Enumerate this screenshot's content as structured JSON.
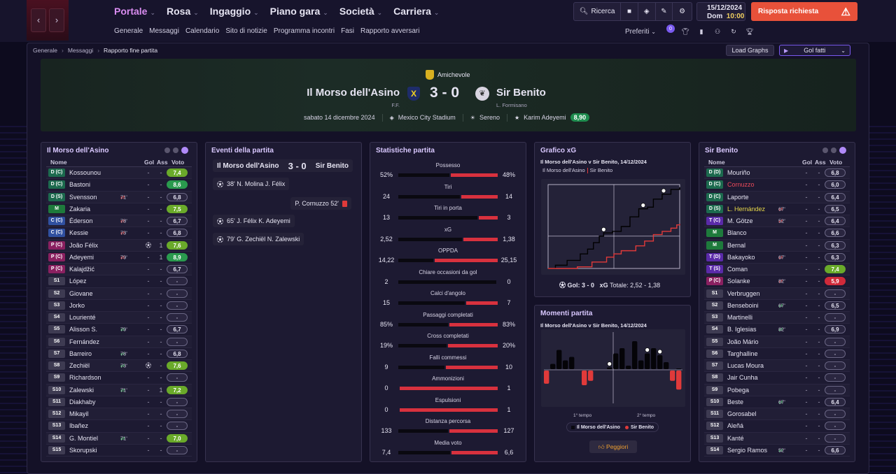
{
  "nav": {
    "back": "‹",
    "forward": "›",
    "menu": [
      "Portale",
      "Rosa",
      "Ingaggio",
      "Piano gara",
      "Società",
      "Carriera"
    ],
    "submenu": [
      "Generale",
      "Messaggi",
      "Calendario",
      "Sito di notizie",
      "Programma incontri",
      "Fasi",
      "Rapporto avversari"
    ],
    "search": "Ricerca",
    "date": "15/12/2024",
    "day": "Dom",
    "time": "10:00",
    "alert": "Risposta richiesta",
    "alert_icon": "⚠",
    "preferiti": "Preferiti",
    "notif": "0"
  },
  "breadcrumb": [
    "Generale",
    "Messaggi",
    "Rapporto fine partita"
  ],
  "buttons": {
    "load_graphs": "Load Graphs",
    "gol_fatti": "Gol fatti"
  },
  "match": {
    "competition": "Amichevole",
    "home": "Il Morso dell'Asino",
    "home_sub": "F.F.",
    "home_crest": "X",
    "score": "3 - 0",
    "away": "Sir Benito",
    "away_sub": "L. Formisano",
    "date": "sabato 14 dicembre 2024",
    "stadium": "Mexico City Stadium",
    "weather": "Sereno",
    "motm": "Karim Adeyemi",
    "motm_rating": "8,90"
  },
  "home_panel": {
    "title": "Il Morso dell'Asino",
    "headers": {
      "name": "Nome",
      "gol": "Gol",
      "ass": "Ass",
      "voto": "Voto"
    },
    "players": [
      {
        "pos": "D (C)",
        "t": "D",
        "name": "Kossounou",
        "gol": "-",
        "ass": "-",
        "voto": "7,4",
        "v": "g2"
      },
      {
        "pos": "D (C)",
        "t": "D",
        "name": "Bastoni",
        "gol": "-",
        "ass": "-",
        "voto": "8,6",
        "v": "g1"
      },
      {
        "pos": "D (S)",
        "t": "D",
        "name": "Svensson",
        "sub": "71'",
        "sg": "r",
        "gol": "-",
        "ass": "-",
        "voto": "6,8"
      },
      {
        "pos": "M",
        "t": "M",
        "name": "Zakaria",
        "gol": "-",
        "ass": "-",
        "voto": "7,5",
        "v": "g2"
      },
      {
        "pos": "C (C)",
        "t": "C",
        "name": "Éderson",
        "sub": "78'",
        "sg": "r",
        "gol": "-",
        "ass": "-",
        "voto": "6,7"
      },
      {
        "pos": "C (C)",
        "t": "C",
        "name": "Kessie",
        "sub": "73'",
        "sg": "r",
        "gol": "-",
        "ass": "-",
        "voto": "6,8"
      },
      {
        "pos": "P (C)",
        "t": "P",
        "name": "João Félix",
        "ev": "⚽",
        "gol": "-",
        "ass": "1",
        "voto": "7,6",
        "v": "g2"
      },
      {
        "pos": "P (C)",
        "t": "P",
        "name": "Adeyemi",
        "sub": "79'",
        "sg": "r",
        "gol": "-",
        "ass": "1",
        "voto": "8,9",
        "v": "g1"
      },
      {
        "pos": "P (C)",
        "t": "P",
        "name": "Kalajdžić",
        "gol": "-",
        "ass": "-",
        "voto": "6,7"
      },
      {
        "pos": "S1",
        "t": "S",
        "name": "López",
        "gol": "-",
        "ass": "-",
        "voto": "-",
        "v": "e"
      },
      {
        "pos": "S2",
        "t": "S",
        "name": "Giovane",
        "gol": "-",
        "ass": "-",
        "voto": "-",
        "v": "e"
      },
      {
        "pos": "S3",
        "t": "S",
        "name": "Jorko",
        "gol": "-",
        "ass": "-",
        "voto": "-",
        "v": "e"
      },
      {
        "pos": "S4",
        "t": "S",
        "name": "Lourienté",
        "gol": "-",
        "ass": "-",
        "voto": "-",
        "v": "e"
      },
      {
        "pos": "S5",
        "t": "S",
        "name": "Alisson S.",
        "sub": "79'",
        "sg": "g",
        "gol": "-",
        "ass": "-",
        "voto": "6,7"
      },
      {
        "pos": "S6",
        "t": "S",
        "name": "Fernández",
        "gol": "-",
        "ass": "-",
        "voto": "-",
        "v": "e"
      },
      {
        "pos": "S7",
        "t": "S",
        "name": "Barreiro",
        "sub": "78'",
        "sg": "g",
        "gol": "-",
        "ass": "-",
        "voto": "6,8"
      },
      {
        "pos": "S8",
        "t": "S",
        "name": "Zechiël",
        "sub": "73'",
        "sg": "g",
        "ev": "⚽",
        "gol": "-",
        "ass": "-",
        "voto": "7,6",
        "v": "g2"
      },
      {
        "pos": "S9",
        "t": "S",
        "name": "Richardson",
        "gol": "-",
        "ass": "-",
        "voto": "-",
        "v": "e"
      },
      {
        "pos": "S10",
        "t": "S",
        "name": "Zalewski",
        "sub": "71'",
        "sg": "g",
        "gol": "-",
        "ass": "1",
        "voto": "7,2",
        "v": "g2"
      },
      {
        "pos": "S11",
        "t": "S",
        "name": "Diakhaby",
        "gol": "-",
        "ass": "-",
        "voto": "-",
        "v": "e"
      },
      {
        "pos": "S12",
        "t": "S",
        "name": "Mikayil",
        "gol": "-",
        "ass": "-",
        "voto": "-",
        "v": "e"
      },
      {
        "pos": "S13",
        "t": "S",
        "name": "Ibañez",
        "gol": "-",
        "ass": "-",
        "voto": "-",
        "v": "e"
      },
      {
        "pos": "S14",
        "t": "S",
        "name": "G. Montiel",
        "sub": "71'",
        "sg": "g",
        "gol": "-",
        "ass": "-",
        "voto": "7,0",
        "v": "g2"
      },
      {
        "pos": "S15",
        "t": "S",
        "name": "Skorupski",
        "gol": "-",
        "ass": "-",
        "voto": "-",
        "v": "e"
      }
    ]
  },
  "events": {
    "title": "Eventi della partita",
    "home": "Il Morso dell'Asino",
    "score": "3 - 0",
    "away": "Sir Benito",
    "items": [
      {
        "text": "38'  N. Molina J. Félix",
        "side": "home",
        "type": "goal"
      },
      {
        "text": "P. Cornuzzo 52'",
        "side": "away",
        "type": "red"
      },
      {
        "text": "65'  J. Félix K. Adeyemi",
        "side": "home",
        "type": "goal"
      },
      {
        "text": "79'  G. Zechiël N. Zalewski",
        "side": "home",
        "type": "goal"
      }
    ]
  },
  "stats": {
    "title": "Statistiche partita",
    "items": [
      {
        "label": "Possesso",
        "l": "52%",
        "r": "48%",
        "lp": 52,
        "rp": 48
      },
      {
        "label": "Tiri",
        "l": "24",
        "r": "14",
        "lp": 63,
        "rp": 37
      },
      {
        "label": "Tiri in porta",
        "l": "13",
        "r": "3",
        "lp": 81,
        "rp": 19
      },
      {
        "label": "xG",
        "l": "2,52",
        "r": "1,38",
        "lp": 65,
        "rp": 35
      },
      {
        "label": "OPPDA",
        "l": "14,22",
        "r": "25,15",
        "lp": 36,
        "rp": 64
      },
      {
        "label": "Chiare occasioni da gol",
        "l": "2",
        "r": "0",
        "lp": 100,
        "rp": 0
      },
      {
        "label": "Calci d'angolo",
        "l": "15",
        "r": "7",
        "lp": 68,
        "rp": 32
      },
      {
        "label": "Passaggi completati",
        "l": "85%",
        "r": "83%",
        "lp": 51,
        "rp": 49
      },
      {
        "label": "Cross completati",
        "l": "19%",
        "r": "20%",
        "lp": 49,
        "rp": 51
      },
      {
        "label": "Falli commessi",
        "l": "9",
        "r": "10",
        "lp": 47,
        "rp": 53
      },
      {
        "label": "Ammonizioni",
        "l": "0",
        "r": "1",
        "lp": 0,
        "rp": 100
      },
      {
        "label": "Espulsioni",
        "l": "0",
        "r": "1",
        "lp": 0,
        "rp": 100
      },
      {
        "label": "Distanza percorsa",
        "l": "133",
        "r": "127",
        "lp": 51,
        "rp": 49
      },
      {
        "label": "Media voto",
        "l": "7,4",
        "r": "6,6",
        "lp": 53,
        "rp": 47
      }
    ]
  },
  "xg": {
    "title": "Grafico xG",
    "subtitle": "Il Morso dell'Asino v Sir Benito, 14/12/2024",
    "legend_home": "Il Morso dell'Asino",
    "legend_away": "Sir Benito",
    "footer_goals": "Gol: 3 - 0",
    "footer_xg_label": "xG",
    "footer_xg": "Totale: 2,52 - 1,38"
  },
  "momenti": {
    "title": "Momenti partita",
    "subtitle": "Il Morso dell'Asino v Sir Benito, 14/12/2024",
    "half1": "1° tempo",
    "half2": "2° tempo",
    "legend_home": "Il Morso dell'Asino",
    "legend_away": "Sir Benito",
    "peggiori": "Peggiori"
  },
  "away_panel": {
    "title": "Sir Benito",
    "headers": {
      "name": "Nome",
      "gol": "Gol",
      "ass": "Ass",
      "voto": "Voto"
    },
    "players": [
      {
        "pos": "D (D)",
        "t": "D",
        "name": "Mouriño",
        "gol": "-",
        "ass": "-",
        "voto": "6,8"
      },
      {
        "pos": "D (C)",
        "t": "D",
        "name": "Cornuzzo",
        "nc": "red",
        "gol": "-",
        "ass": "-",
        "voto": "6,0"
      },
      {
        "pos": "D (C)",
        "t": "D",
        "name": "Laporte",
        "gol": "-",
        "ass": "-",
        "voto": "6,4"
      },
      {
        "pos": "D (S)",
        "t": "D",
        "name": "L. Hernández",
        "nc": "yel",
        "sub": "67'",
        "sg": "r",
        "gol": "-",
        "ass": "-",
        "voto": "6,5"
      },
      {
        "pos": "T (C)",
        "t": "T",
        "name": "M. Götze",
        "sub": "52'",
        "sg": "r",
        "gol": "-",
        "ass": "-",
        "voto": "6,4"
      },
      {
        "pos": "M",
        "t": "M",
        "name": "Blanco",
        "gol": "-",
        "ass": "-",
        "voto": "6,6"
      },
      {
        "pos": "M",
        "t": "M",
        "name": "Bernal",
        "gol": "-",
        "ass": "-",
        "voto": "6,3"
      },
      {
        "pos": "T (D)",
        "t": "T",
        "name": "Bakayoko",
        "sub": "67'",
        "sg": "r",
        "gol": "-",
        "ass": "-",
        "voto": "6,3"
      },
      {
        "pos": "T (S)",
        "t": "T",
        "name": "Coman",
        "gol": "-",
        "ass": "-",
        "voto": "7,4",
        "v": "g2"
      },
      {
        "pos": "P (C)",
        "t": "P",
        "name": "Solanke",
        "sub": "82'",
        "sg": "r",
        "gol": "-",
        "ass": "-",
        "voto": "5,9",
        "v": "r"
      },
      {
        "pos": "S1",
        "t": "S",
        "name": "Verbruggen",
        "gol": "-",
        "ass": "-",
        "voto": "-",
        "v": "e"
      },
      {
        "pos": "S2",
        "t": "S",
        "name": "Benseboini",
        "sub": "67'",
        "sg": "g",
        "gol": "-",
        "ass": "-",
        "voto": "6,5"
      },
      {
        "pos": "S3",
        "t": "S",
        "name": "Martinelli",
        "gol": "-",
        "ass": "-",
        "voto": "-",
        "v": "e"
      },
      {
        "pos": "S4",
        "t": "S",
        "name": "B. Iglesias",
        "sub": "82'",
        "sg": "g",
        "gol": "-",
        "ass": "-",
        "voto": "6,9"
      },
      {
        "pos": "S5",
        "t": "S",
        "name": "João Mário",
        "gol": "-",
        "ass": "-",
        "voto": "-",
        "v": "e"
      },
      {
        "pos": "S6",
        "t": "S",
        "name": "Targhalline",
        "gol": "-",
        "ass": "-",
        "voto": "-",
        "v": "e"
      },
      {
        "pos": "S7",
        "t": "S",
        "name": "Lucas Moura",
        "gol": "-",
        "ass": "-",
        "voto": "-",
        "v": "e"
      },
      {
        "pos": "S8",
        "t": "S",
        "name": "Jair Cunha",
        "gol": "-",
        "ass": "-",
        "voto": "-",
        "v": "e"
      },
      {
        "pos": "S9",
        "t": "S",
        "name": "Pobega",
        "gol": "-",
        "ass": "-",
        "voto": "-",
        "v": "e"
      },
      {
        "pos": "S10",
        "t": "S",
        "name": "Beste",
        "sub": "67'",
        "sg": "g",
        "gol": "-",
        "ass": "-",
        "voto": "6,4"
      },
      {
        "pos": "S11",
        "t": "S",
        "name": "Gorosabel",
        "gol": "-",
        "ass": "-",
        "voto": "-",
        "v": "e"
      },
      {
        "pos": "S12",
        "t": "S",
        "name": "Aleñá",
        "gol": "-",
        "ass": "-",
        "voto": "-",
        "v": "e"
      },
      {
        "pos": "S13",
        "t": "S",
        "name": "Kanté",
        "gol": "-",
        "ass": "-",
        "voto": "-",
        "v": "e"
      },
      {
        "pos": "S14",
        "t": "S",
        "name": "Sergio Ramos",
        "sub": "52'",
        "sg": "g",
        "gol": "-",
        "ass": "-",
        "voto": "6,6"
      }
    ]
  },
  "chart_data": [
    {
      "type": "line",
      "title": "Grafico xG",
      "series": [
        {
          "name": "Il Morso dell'Asino",
          "color": "#000000",
          "x": [
            0,
            5,
            9,
            13,
            17,
            22,
            27,
            31,
            35,
            38,
            44,
            50,
            56,
            62,
            68,
            72,
            78,
            84,
            90
          ],
          "y": [
            0,
            0.1,
            0.1,
            0.25,
            0.25,
            0.45,
            0.6,
            0.8,
            1.0,
            1.1,
            1.15,
            1.3,
            1.6,
            1.85,
            1.9,
            2.15,
            2.3,
            2.45,
            2.52
          ]
        },
        {
          "name": "Sir Benito",
          "color": "#e03a3a",
          "x": [
            0,
            20,
            30,
            40,
            45,
            50,
            60,
            66,
            72,
            78,
            84,
            88,
            90
          ],
          "y": [
            0,
            0.05,
            0.2,
            0.35,
            0.45,
            0.55,
            0.7,
            0.85,
            1.05,
            1.15,
            1.25,
            1.35,
            1.38
          ]
        }
      ],
      "goals_minutes": [
        38,
        65,
        79
      ]
    },
    {
      "type": "bar",
      "title": "Momenti partita",
      "series": [
        {
          "name": "Il Morso dell'Asino",
          "color": "#000000",
          "values": [
            0,
            0.15,
            0.55,
            0.25,
            0.35,
            0,
            0,
            0,
            0,
            0,
            0.05,
            0.45,
            0.6,
            0.1,
            0.8,
            0.25,
            0.45,
            0.6,
            0.4,
            0.2,
            0,
            0.02
          ]
        },
        {
          "name": "Sir Benito",
          "color": "#e03a3a",
          "values": [
            0.45,
            0,
            0,
            0,
            0,
            0,
            0.5,
            0.35,
            0,
            0,
            0,
            0,
            0,
            0,
            0,
            0,
            0,
            0,
            0,
            0,
            0.35,
            0.65
          ]
        }
      ],
      "goals_bar_index": [
        10,
        16,
        18
      ]
    }
  ]
}
